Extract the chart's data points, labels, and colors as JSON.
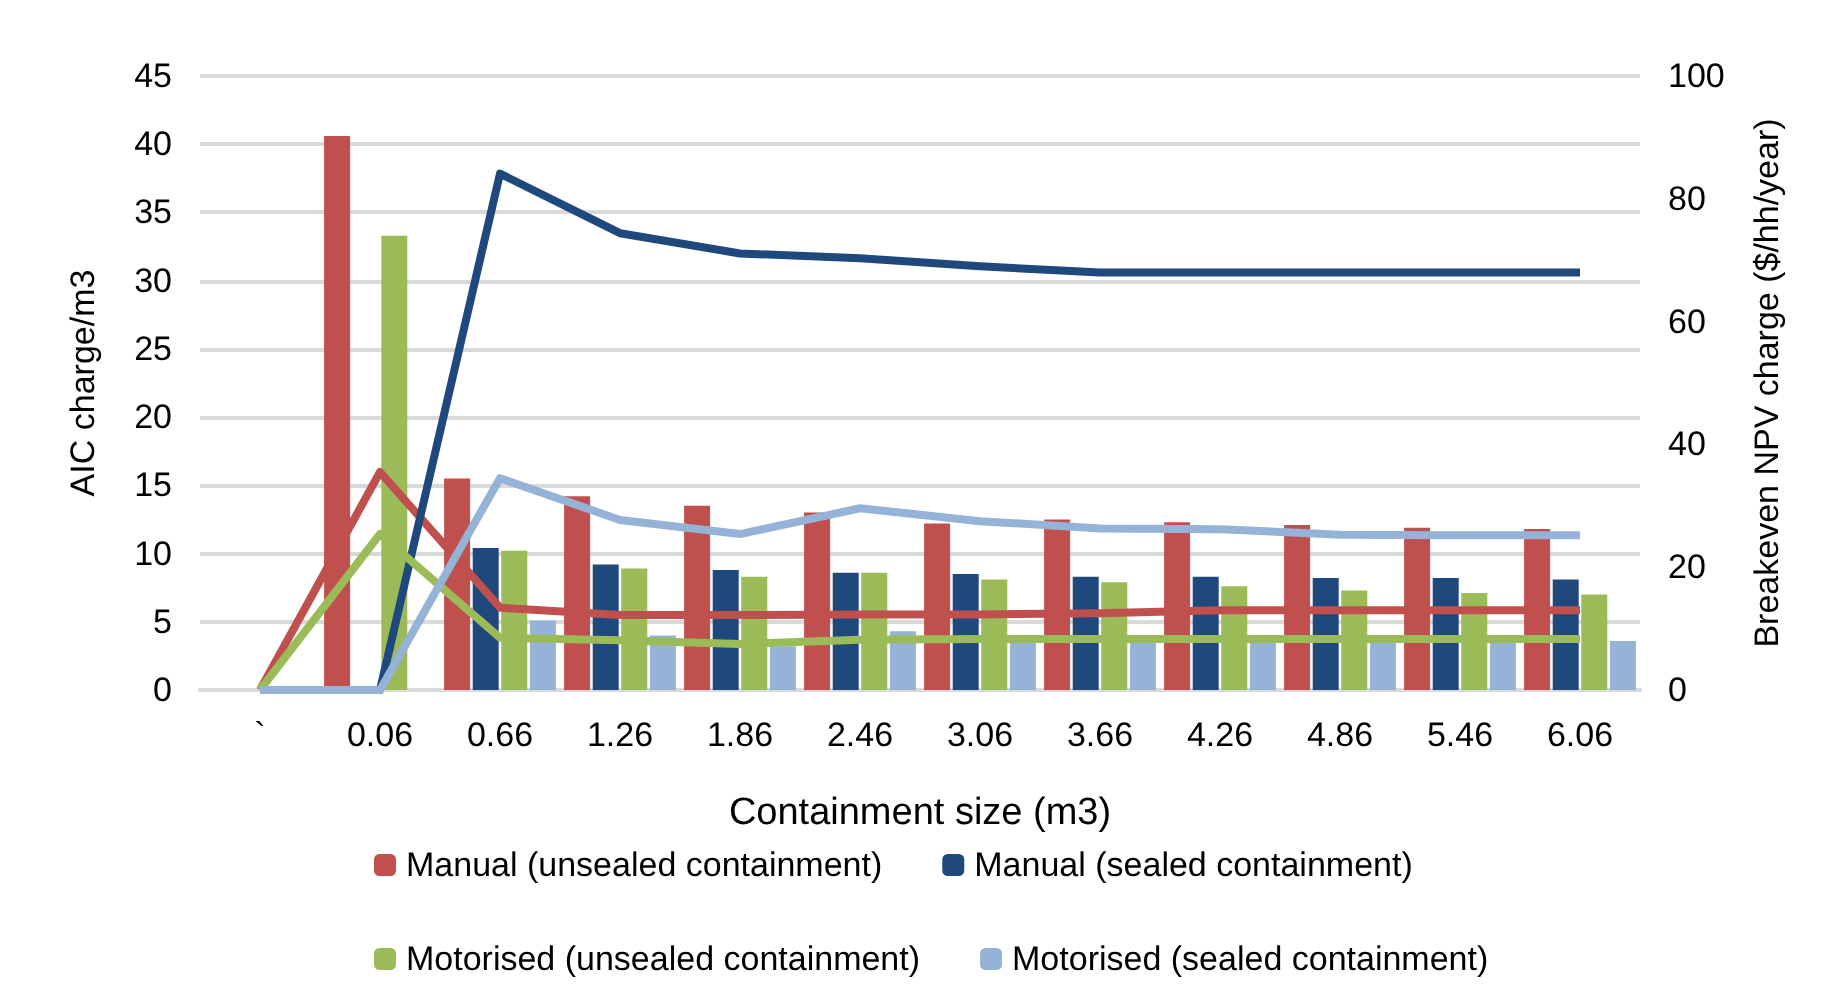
{
  "chart_data": {
    "type": "bar",
    "xlabel": "Containment size (m3)",
    "ylabel": "AIC charge/m3",
    "y2label": "Breakeven NPV charge ($/hh/year)",
    "categories": [
      "`",
      "0.06",
      "0.66",
      "1.26",
      "1.86",
      "2.46",
      "3.06",
      "3.66",
      "4.26",
      "4.86",
      "5.46",
      "6.06"
    ],
    "series": [
      {
        "name": "Manual (unsealed containment)",
        "color": "#c0504d",
        "values": [
          null,
          40.6,
          15.5,
          14.2,
          13.5,
          13.0,
          12.2,
          12.5,
          12.3,
          12.1,
          11.9,
          11.8
        ]
      },
      {
        "name": "Manual (sealed containment)",
        "color": "#1f497d",
        "values": [
          null,
          null,
          10.4,
          9.2,
          8.8,
          8.6,
          8.5,
          8.3,
          8.3,
          8.2,
          8.2,
          8.1
        ]
      },
      {
        "name": "Motorised (unsealed containment)",
        "color": "#9bbb59",
        "values": [
          null,
          33.3,
          10.2,
          8.9,
          8.3,
          8.6,
          8.1,
          7.9,
          7.6,
          7.3,
          7.1,
          7.0
        ]
      },
      {
        "name": "Motorised (sealed containment)",
        "color": "#95b3d7",
        "values": [
          null,
          null,
          5.1,
          4.0,
          3.2,
          4.3,
          3.6,
          3.5,
          3.5,
          3.5,
          3.5,
          3.6
        ]
      },
      {
        "type": "line",
        "axis": "y2",
        "color": "#c0504d",
        "values": [
          0,
          35.5,
          13.4,
          12.2,
          12.2,
          12.3,
          12.3,
          12.5,
          13.0,
          13.0,
          13.0,
          13.0
        ]
      },
      {
        "type": "line",
        "axis": "y2",
        "color": "#1f497d",
        "values": [
          0,
          0,
          84.1,
          74.4,
          71.1,
          70.3,
          69.0,
          68.0,
          68.0,
          68.0,
          68.0,
          68.0
        ]
      },
      {
        "type": "line",
        "axis": "y2",
        "color": "#9bbb59",
        "values": [
          0,
          25.4,
          8.5,
          8.1,
          7.5,
          8.2,
          8.3,
          8.3,
          8.3,
          8.3,
          8.3,
          8.3
        ]
      },
      {
        "type": "line",
        "axis": "y2",
        "color": "#95b3d7",
        "values": [
          0,
          0,
          34.5,
          27.7,
          25.4,
          29.6,
          27.5,
          26.3,
          26.2,
          25.3,
          25.2,
          25.2
        ]
      }
    ],
    "ylim": [
      0,
      45
    ],
    "yticks": [
      0,
      5,
      10,
      15,
      20,
      25,
      30,
      35,
      40,
      45
    ],
    "y2lim": [
      0,
      100
    ],
    "y2ticks": [
      0,
      20,
      40,
      60,
      80,
      100
    ],
    "grid": "y",
    "legend": "bottom",
    "marker": "none",
    "line_style": "solid"
  }
}
